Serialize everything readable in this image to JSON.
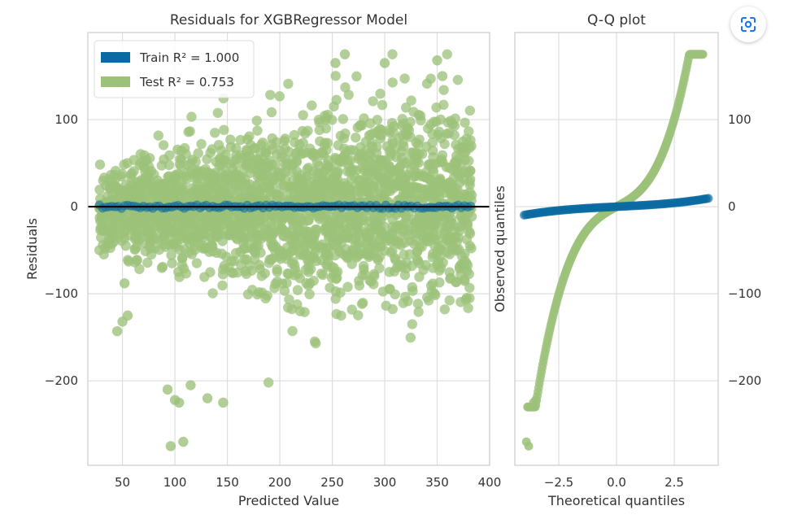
{
  "colors": {
    "train": "#0a6aa1",
    "test": "#9cc27a",
    "zero_line": "#000000",
    "grid": "#dddddd",
    "spine": "#cccccc"
  },
  "icons": {
    "lens": "google-lens-icon"
  },
  "chart_data": [
    {
      "type": "scatter",
      "title": "Residuals for XGBRegressor Model",
      "xlabel": "Predicted Value",
      "ylabel": "Residuals",
      "xlim": [
        17,
        400
      ],
      "ylim": [
        -297,
        200
      ],
      "x_ticks": [
        50,
        100,
        150,
        200,
        250,
        300,
        350,
        400
      ],
      "y_ticks": [
        100,
        0,
        -100,
        -200
      ],
      "x_tick_labels": [
        "50",
        "100",
        "150",
        "200",
        "250",
        "300",
        "350",
        "400"
      ],
      "y_tick_labels": [
        "100",
        "0",
        "−100",
        "−200"
      ],
      "grid": true,
      "legend_position": "top-left",
      "legend": [
        "Train R² = 1.000",
        "Test R² = 0.753"
      ],
      "reference_line": {
        "y": 0
      },
      "series": [
        {
          "name": "Train R² = 1.000",
          "x_range": [
            28,
            383
          ],
          "y_range": [
            -3,
            3
          ]
        },
        {
          "name": "Test R² = 0.753",
          "x_range": [
            28,
            383
          ],
          "y_range": [
            -275,
            175
          ],
          "outliers": [
            {
              "x": 96,
              "y": -275
            },
            {
              "x": 108,
              "y": -270
            },
            {
              "x": 100,
              "y": -222
            },
            {
              "x": 104,
              "y": -225
            },
            {
              "x": 131,
              "y": -220
            },
            {
              "x": 146,
              "y": -225
            },
            {
              "x": 115,
              "y": -205
            },
            {
              "x": 93,
              "y": -210
            },
            {
              "x": 262,
              "y": 175
            },
            {
              "x": 253,
              "y": 165
            },
            {
              "x": 300,
              "y": 165
            },
            {
              "x": 350,
              "y": 168
            },
            {
              "x": 355,
              "y": 150
            },
            {
              "x": 45,
              "y": -143
            },
            {
              "x": 50,
              "y": -132
            },
            {
              "x": 55,
              "y": -125
            },
            {
              "x": 52,
              "y": -88
            },
            {
              "x": 372,
              "y": 28
            },
            {
              "x": 378,
              "y": 10
            },
            {
              "x": 368,
              "y": 40
            }
          ]
        }
      ]
    },
    {
      "type": "scatter",
      "title": "Q-Q plot",
      "xlabel": "Theoretical quantiles",
      "ylabel": "Observed quantiles",
      "xlim": [
        -4.4,
        4.4
      ],
      "ylim": [
        -297,
        200
      ],
      "x_ticks": [
        -2.5,
        0.0,
        2.5
      ],
      "y_ticks": [
        100,
        0,
        -100,
        -200
      ],
      "x_tick_labels": [
        "−2.5",
        "0.0",
        "2.5"
      ],
      "y_tick_labels": [
        "100",
        "0",
        "−100",
        "−200"
      ],
      "grid": true,
      "series": [
        {
          "name": "Train R² = 1.000",
          "x_range": [
            -4.0,
            4.0
          ],
          "y_range": [
            -10,
            8
          ]
        },
        {
          "name": "Test R² = 0.753",
          "x_range": [
            -4.0,
            3.8
          ],
          "y_range": [
            -275,
            175
          ]
        }
      ]
    }
  ]
}
